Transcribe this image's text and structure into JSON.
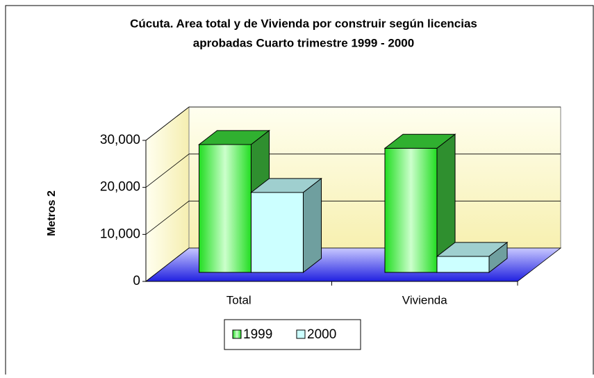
{
  "chart_data": {
    "type": "bar3d",
    "title": "Cúcuta. Area total y de Vivienda por construir según licencias",
    "subtitle": "aprobadas Cuarto trimestre 1999 - 2000",
    "y_label": "Metros 2",
    "categories": [
      "Total",
      "Vivienda"
    ],
    "series": [
      {
        "name": "1999",
        "color": "#33ff33",
        "values": [
          27200,
          26400
        ]
      },
      {
        "name": "2000",
        "color": "#ccffff",
        "values": [
          17000,
          3400
        ]
      }
    ],
    "ylim": [
      0,
      30000
    ],
    "yticks": [
      0,
      {
        "value": 10000,
        "label": "10,000"
      },
      {
        "value": 20000,
        "label": "20,000"
      },
      {
        "value": 30000,
        "label": "30,000"
      }
    ],
    "grid": true,
    "legend": "bottom"
  }
}
